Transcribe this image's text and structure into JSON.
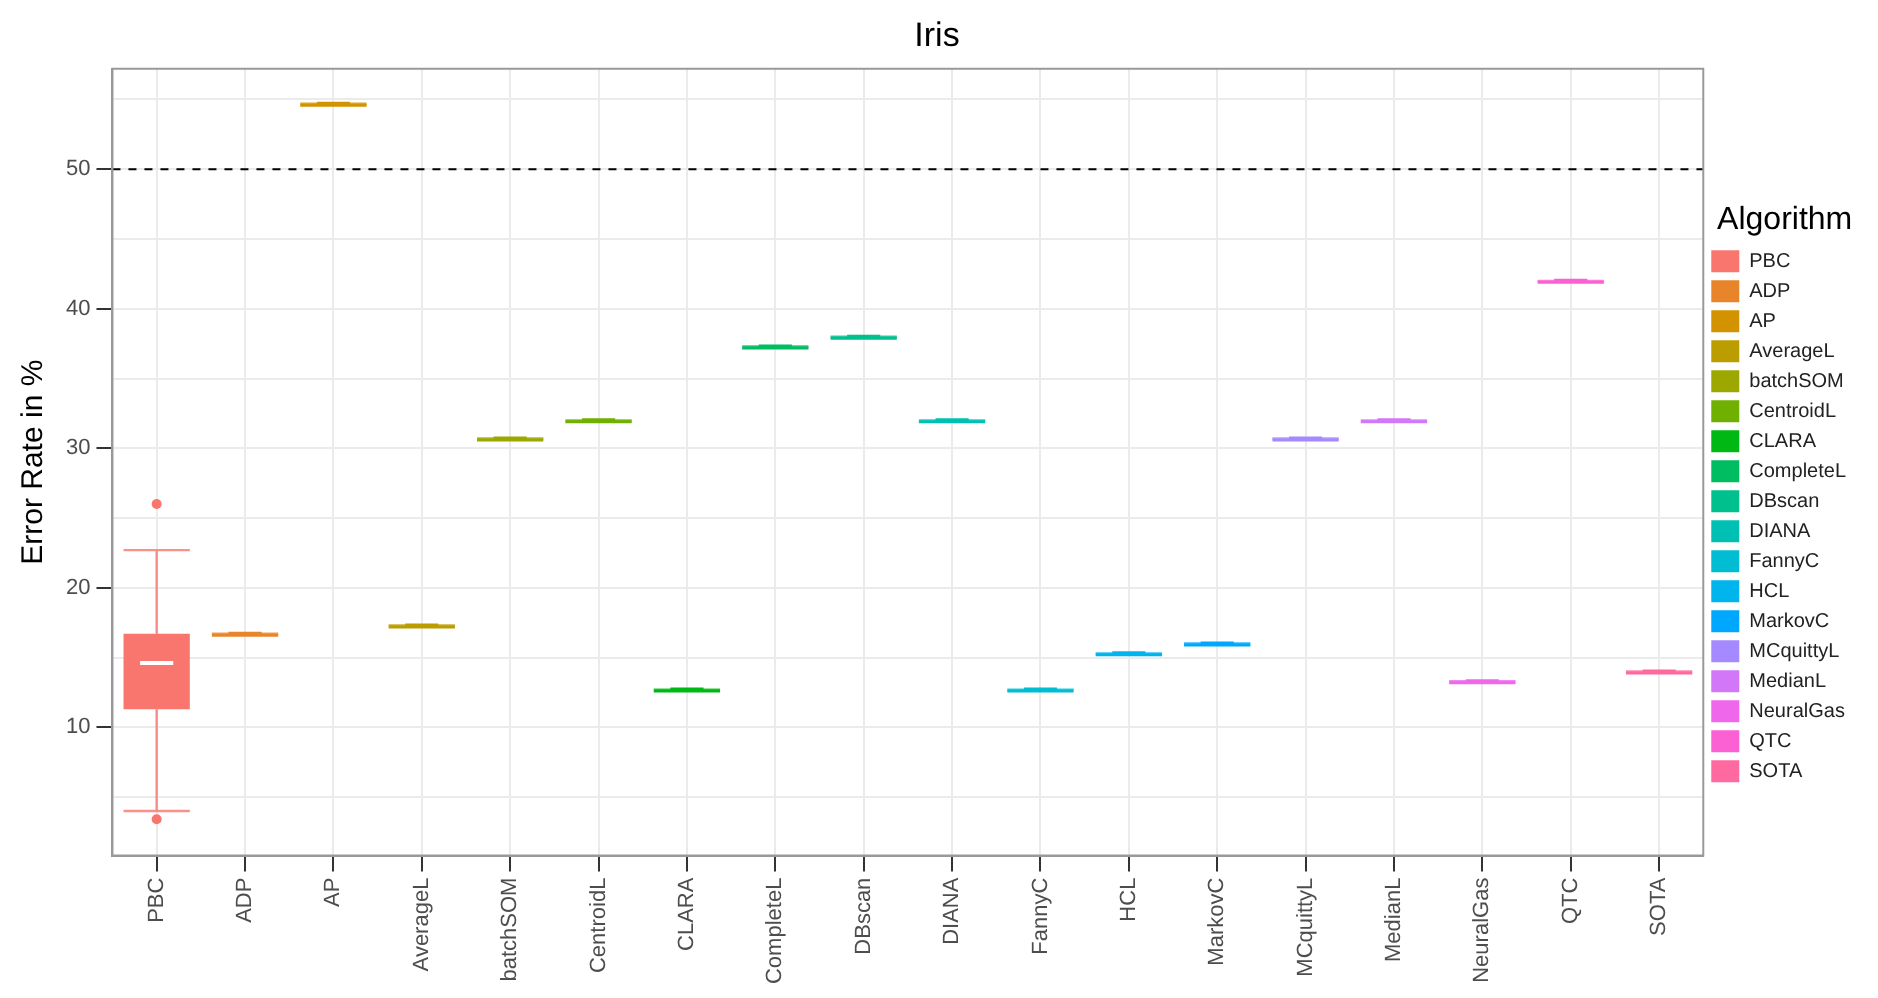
{
  "chart_data": {
    "type": "box",
    "title": "Iris",
    "ylabel": "Error Rate in %",
    "legend_title": "Algorithm",
    "legend": "right",
    "grid": true,
    "categories": [
      "PBC",
      "ADP",
      "AP",
      "AverageL",
      "batchSOM",
      "CentroidL",
      "CLARA",
      "CompleteL",
      "DBscan",
      "DIANA",
      "FannyC",
      "HCL",
      "MarkovC",
      "MCquittyL",
      "MedianL",
      "NeuralGas",
      "QTC",
      "SOTA"
    ],
    "series": [
      {
        "name": "PBC",
        "color": "#f8766d",
        "boxes": [
          {
            "low": 4,
            "q1": 11.3,
            "median": 14.6,
            "q3": 16.7,
            "high": 22.7,
            "outliers": [
              26,
              3.4
            ]
          },
          null,
          null,
          null,
          null,
          null,
          null,
          null,
          null,
          null,
          null,
          null,
          null,
          null,
          null,
          null,
          null,
          null
        ]
      },
      {
        "name": "ADP",
        "color": "#e8852b",
        "boxes": [
          null,
          {
            "low": 16.7,
            "q1": 16.7,
            "median": 16.7,
            "q3": 16.7,
            "high": 16.7
          },
          null,
          null,
          null,
          null,
          null,
          null,
          null,
          null,
          null,
          null,
          null,
          null,
          null,
          null,
          null,
          null
        ]
      },
      {
        "name": "AP",
        "color": "#d39200",
        "boxes": [
          null,
          null,
          {
            "low": 54.7,
            "q1": 54.7,
            "median": 54.7,
            "q3": 54.7,
            "high": 54.7
          },
          null,
          null,
          null,
          null,
          null,
          null,
          null,
          null,
          null,
          null,
          null,
          null,
          null,
          null,
          null
        ]
      },
      {
        "name": "AverageL",
        "color": "#bb9d00",
        "boxes": [
          null,
          null,
          null,
          {
            "low": 17.3,
            "q1": 17.3,
            "median": 17.3,
            "q3": 17.3,
            "high": 17.3
          },
          null,
          null,
          null,
          null,
          null,
          null,
          null,
          null,
          null,
          null,
          null,
          null,
          null,
          null
        ]
      },
      {
        "name": "batchSOM",
        "color": "#9ca700",
        "boxes": [
          null,
          null,
          null,
          null,
          {
            "low": 30.7,
            "q1": 30.7,
            "median": 30.7,
            "q3": 30.7,
            "high": 30.7
          },
          null,
          null,
          null,
          null,
          null,
          null,
          null,
          null,
          null,
          null,
          null,
          null,
          null
        ]
      },
      {
        "name": "CentroidL",
        "color": "#6fb000",
        "boxes": [
          null,
          null,
          null,
          null,
          null,
          {
            "low": 32,
            "q1": 32,
            "median": 32,
            "q3": 32,
            "high": 32
          },
          null,
          null,
          null,
          null,
          null,
          null,
          null,
          null,
          null,
          null,
          null,
          null
        ]
      },
      {
        "name": "CLARA",
        "color": "#00b813",
        "boxes": [
          null,
          null,
          null,
          null,
          null,
          null,
          {
            "low": 12.7,
            "q1": 12.7,
            "median": 12.7,
            "q3": 12.7,
            "high": 12.7
          },
          null,
          null,
          null,
          null,
          null,
          null,
          null,
          null,
          null,
          null,
          null
        ]
      },
      {
        "name": "CompleteL",
        "color": "#00bd61",
        "boxes": [
          null,
          null,
          null,
          null,
          null,
          null,
          null,
          {
            "low": 37.3,
            "q1": 37.3,
            "median": 37.3,
            "q3": 37.3,
            "high": 37.3
          },
          null,
          null,
          null,
          null,
          null,
          null,
          null,
          null,
          null,
          null
        ]
      },
      {
        "name": "DBscan",
        "color": "#00c08e",
        "boxes": [
          null,
          null,
          null,
          null,
          null,
          null,
          null,
          null,
          {
            "low": 38,
            "q1": 38,
            "median": 38,
            "q3": 38,
            "high": 38
          },
          null,
          null,
          null,
          null,
          null,
          null,
          null,
          null,
          null
        ]
      },
      {
        "name": "DIANA",
        "color": "#00c0b4",
        "boxes": [
          null,
          null,
          null,
          null,
          null,
          null,
          null,
          null,
          null,
          {
            "low": 32,
            "q1": 32,
            "median": 32,
            "q3": 32,
            "high": 32
          },
          null,
          null,
          null,
          null,
          null,
          null,
          null,
          null
        ]
      },
      {
        "name": "FannyC",
        "color": "#00bdd4",
        "boxes": [
          null,
          null,
          null,
          null,
          null,
          null,
          null,
          null,
          null,
          null,
          {
            "low": 12.7,
            "q1": 12.7,
            "median": 12.7,
            "q3": 12.7,
            "high": 12.7
          },
          null,
          null,
          null,
          null,
          null,
          null,
          null
        ]
      },
      {
        "name": "HCL",
        "color": "#00b5ee",
        "boxes": [
          null,
          null,
          null,
          null,
          null,
          null,
          null,
          null,
          null,
          null,
          null,
          {
            "low": 15.3,
            "q1": 15.3,
            "median": 15.3,
            "q3": 15.3,
            "high": 15.3
          },
          null,
          null,
          null,
          null,
          null,
          null
        ]
      },
      {
        "name": "MarkovC",
        "color": "#00a7ff",
        "boxes": [
          null,
          null,
          null,
          null,
          null,
          null,
          null,
          null,
          null,
          null,
          null,
          null,
          {
            "low": 16,
            "q1": 16,
            "median": 16,
            "q3": 16,
            "high": 16
          },
          null,
          null,
          null,
          null,
          null
        ]
      },
      {
        "name": "MCquittyL",
        "color": "#a58aff",
        "boxes": [
          null,
          null,
          null,
          null,
          null,
          null,
          null,
          null,
          null,
          null,
          null,
          null,
          null,
          {
            "low": 30.7,
            "q1": 30.7,
            "median": 30.7,
            "q3": 30.7,
            "high": 30.7
          },
          null,
          null,
          null,
          null
        ]
      },
      {
        "name": "MedianL",
        "color": "#d177f8",
        "boxes": [
          null,
          null,
          null,
          null,
          null,
          null,
          null,
          null,
          null,
          null,
          null,
          null,
          null,
          null,
          {
            "low": 32,
            "q1": 32,
            "median": 32,
            "q3": 32,
            "high": 32
          },
          null,
          null,
          null
        ]
      },
      {
        "name": "NeuralGas",
        "color": "#ef67eb",
        "boxes": [
          null,
          null,
          null,
          null,
          null,
          null,
          null,
          null,
          null,
          null,
          null,
          null,
          null,
          null,
          null,
          {
            "low": 13.3,
            "q1": 13.3,
            "median": 13.3,
            "q3": 13.3,
            "high": 13.3
          },
          null,
          null
        ]
      },
      {
        "name": "QTC",
        "color": "#fb61d2",
        "boxes": [
          null,
          null,
          null,
          null,
          null,
          null,
          null,
          null,
          null,
          null,
          null,
          null,
          null,
          null,
          null,
          null,
          {
            "low": 42,
            "q1": 42,
            "median": 42,
            "q3": 42,
            "high": 42
          },
          null
        ]
      },
      {
        "name": "SOTA",
        "color": "#fe6a9f",
        "boxes": [
          null,
          null,
          null,
          null,
          null,
          null,
          null,
          null,
          null,
          null,
          null,
          null,
          null,
          null,
          null,
          null,
          null,
          {
            "low": 14,
            "q1": 14,
            "median": 14,
            "q3": 14,
            "high": 14
          }
        ]
      }
    ],
    "ylim": [
      0.8,
      57.2
    ],
    "yticks": [
      {
        "value": 5,
        "label": null
      },
      10,
      {
        "value": 15,
        "label": null
      },
      20,
      {
        "value": 25,
        "label": null
      },
      30,
      {
        "value": 35,
        "label": null
      },
      40,
      {
        "value": 45,
        "label": null
      },
      50,
      {
        "value": 55,
        "label": null
      }
    ],
    "ref_lines": [
      {
        "axis": "y",
        "value": 50,
        "line_style": "dashed",
        "color": "#000000"
      }
    ]
  }
}
